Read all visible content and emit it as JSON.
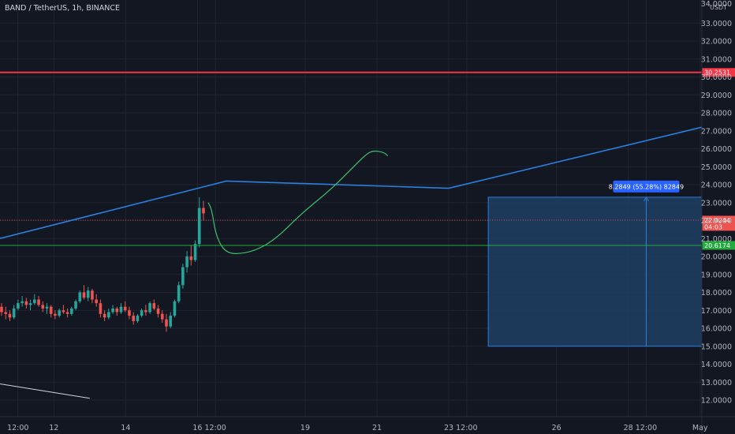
{
  "header": {
    "symbol": "BAND / TetherUS, 1h, BINANCE",
    "currency": "USDT",
    "top_partial_tick": "34.0000"
  },
  "colors": {
    "background": "#131722",
    "grid": "#1f2430",
    "axis_text": "#b2b5be",
    "up_candle": "#26a69a",
    "down_candle": "#ef5350",
    "resistance_line": "#f23645",
    "support_line": "#22ab3c",
    "trend_line": "#2a7fdf",
    "projection_curve": "#3bbf69",
    "measure_box": "#1e3f63",
    "measure_border": "#2a7fdf",
    "measure_label_bg": "#2962ff",
    "crosshair_line": "#d1d4dc"
  },
  "chart_data": {
    "type": "candlestick",
    "title": "BAND / TetherUS, 1h, BINANCE",
    "ylabel": "USDT",
    "ylim": [
      11.5,
      34.2
    ],
    "y_ticks": [
      "12.0000",
      "13.0000",
      "14.0000",
      "15.0000",
      "16.0000",
      "17.0000",
      "18.0000",
      "19.0000",
      "20.0000",
      "21.0000",
      "22.0000",
      "23.0000",
      "24.0000",
      "25.0000",
      "26.0000",
      "27.0000",
      "28.0000",
      "29.0000",
      "30.0000",
      "31.0000",
      "32.0000",
      "33.0000"
    ],
    "x_ticks": [
      "12:00",
      "12",
      "14",
      "16",
      "12:00",
      "19",
      "21",
      "23",
      "12:00",
      "26",
      "28",
      "12:00",
      "May"
    ],
    "x_tick_positions": [
      10.0,
      11.0,
      13.0,
      15.0,
      15.5,
      18.0,
      20.0,
      22.0,
      22.5,
      25.0,
      27.0,
      27.5,
      29.0
    ],
    "x_range": [
      9.5,
      29.05
    ],
    "candles_ohlc": [
      [
        17.2,
        17.4,
        16.7,
        16.9
      ],
      [
        16.9,
        17.2,
        16.5,
        16.8
      ],
      [
        16.8,
        17.0,
        16.4,
        16.6
      ],
      [
        16.6,
        17.3,
        16.5,
        17.1
      ],
      [
        17.1,
        17.6,
        17.0,
        17.4
      ],
      [
        17.4,
        17.8,
        17.2,
        17.5
      ],
      [
        17.5,
        17.7,
        17.1,
        17.3
      ],
      [
        17.3,
        17.6,
        17.0,
        17.4
      ],
      [
        17.4,
        17.9,
        17.3,
        17.6
      ],
      [
        17.6,
        17.8,
        17.2,
        17.3
      ],
      [
        17.3,
        17.5,
        16.9,
        17.1
      ],
      [
        17.1,
        17.4,
        16.8,
        17.2
      ],
      [
        17.2,
        17.3,
        16.6,
        16.8
      ],
      [
        16.8,
        17.0,
        16.5,
        16.7
      ],
      [
        16.7,
        17.1,
        16.6,
        17.0
      ],
      [
        17.0,
        17.3,
        16.8,
        16.9
      ],
      [
        16.9,
        17.1,
        16.6,
        16.8
      ],
      [
        16.8,
        17.2,
        16.7,
        17.1
      ],
      [
        17.1,
        17.6,
        17.0,
        17.5
      ],
      [
        17.5,
        18.1,
        17.4,
        18.0
      ],
      [
        18.0,
        18.4,
        17.6,
        17.7
      ],
      [
        17.7,
        18.3,
        17.5,
        18.1
      ],
      [
        18.1,
        18.2,
        17.4,
        17.6
      ],
      [
        17.6,
        17.9,
        17.2,
        17.4
      ],
      [
        17.4,
        17.6,
        16.6,
        16.8
      ],
      [
        16.8,
        17.0,
        16.4,
        16.6
      ],
      [
        16.6,
        17.1,
        16.5,
        16.9
      ],
      [
        16.9,
        17.3,
        16.8,
        17.1
      ],
      [
        17.1,
        17.2,
        16.7,
        16.9
      ],
      [
        16.9,
        17.4,
        16.8,
        17.2
      ],
      [
        17.2,
        17.5,
        16.9,
        17.0
      ],
      [
        17.0,
        17.2,
        16.5,
        16.7
      ],
      [
        16.7,
        16.9,
        16.2,
        16.4
      ],
      [
        16.4,
        16.8,
        16.3,
        16.7
      ],
      [
        16.7,
        17.1,
        16.6,
        17.0
      ],
      [
        17.0,
        17.3,
        16.7,
        16.9
      ],
      [
        16.9,
        17.5,
        16.8,
        17.4
      ],
      [
        17.4,
        17.6,
        17.0,
        17.1
      ],
      [
        17.1,
        17.3,
        16.6,
        16.8
      ],
      [
        16.8,
        17.0,
        16.3,
        16.5
      ],
      [
        16.5,
        16.8,
        15.8,
        16.1
      ],
      [
        16.1,
        16.9,
        16.0,
        16.7
      ],
      [
        16.7,
        17.6,
        16.6,
        17.5
      ],
      [
        17.5,
        18.6,
        17.4,
        18.4
      ],
      [
        18.4,
        19.6,
        18.2,
        19.4
      ],
      [
        19.4,
        20.3,
        19.1,
        20.0
      ],
      [
        20.0,
        20.6,
        19.5,
        19.8
      ],
      [
        19.8,
        20.9,
        19.7,
        20.7
      ],
      [
        20.7,
        23.3,
        20.5,
        22.7
      ],
      [
        22.7,
        23.1,
        22.0,
        22.4
      ]
    ],
    "horizontal_lines": [
      {
        "price": 30.2531,
        "label": "30.2531"
      },
      {
        "price": 20.6174,
        "label": "20.6174"
      },
      {
        "price": 22.0244,
        "label": "22.0244",
        "sublabel": "04:03"
      }
    ],
    "trend_line": [
      [
        9.5,
        21.0
      ],
      [
        15.8,
        24.2
      ],
      [
        22.0,
        23.8
      ],
      [
        29.05,
        27.2
      ]
    ],
    "projection_curve": [
      [
        15.3,
        23.0
      ],
      [
        15.4,
        22.6
      ],
      [
        15.5,
        21.3
      ],
      [
        15.7,
        20.4
      ],
      [
        16.0,
        20.1
      ],
      [
        16.6,
        20.3
      ],
      [
        17.2,
        21.0
      ],
      [
        17.9,
        22.4
      ],
      [
        18.7,
        23.7
      ],
      [
        19.3,
        24.9
      ],
      [
        19.7,
        25.7
      ],
      [
        19.9,
        25.9
      ],
      [
        20.2,
        25.8
      ],
      [
        20.3,
        25.6
      ]
    ],
    "measure": {
      "x_start": 23.1,
      "x_end": 29.05,
      "price_low": 15.0,
      "price_high": 23.3,
      "label": "8.2849 (55.28%) 82849",
      "arrow_x": 27.5
    },
    "diagonal_segment": [
      [
        9.5,
        12.9
      ],
      [
        12.0,
        12.1
      ]
    ]
  }
}
